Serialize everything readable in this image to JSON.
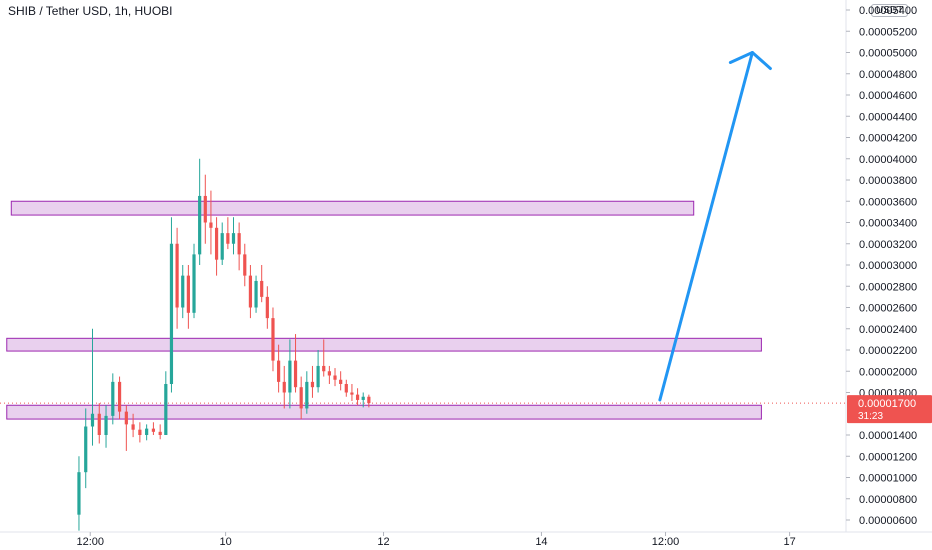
{
  "chart_data": {
    "type": "candlestick",
    "title": "SHIB / Tether USD, 1h, HUOBI",
    "currency": "USDT",
    "ylim": [
      5.1e-06,
      5.5e-06
    ],
    "y_ticks": [
      "0.00005400",
      "0.00005200",
      "0.00005000",
      "0.00004800",
      "0.00004600",
      "0.00004400",
      "0.00004200",
      "0.00004000",
      "0.00003800",
      "0.00003600",
      "0.00003400",
      "0.00003200",
      "0.00003000",
      "0.00002800",
      "0.00002600",
      "0.00002400",
      "0.00002200",
      "0.00002000",
      "0.00001800",
      "0.00001400",
      "0.00001200",
      "0.00001000",
      "0.00000800",
      "0.00000600"
    ],
    "x_ticks": [
      {
        "label": "12:00",
        "index": 1
      },
      {
        "label": "10",
        "index": 13
      },
      {
        "label": "12",
        "index": 27
      },
      {
        "label": "14",
        "index": 41
      },
      {
        "label": "12:00",
        "index": 52
      },
      {
        "label": "17",
        "index": 63
      }
    ],
    "x_index_range": [
      -7,
      68
    ],
    "last_price": {
      "price": "0.00001700",
      "countdown": "31:23",
      "value": 1.7e-05
    },
    "colors": {
      "up": "#26a69a",
      "down": "#ef5350",
      "zone": "#9c27b0",
      "arrow": "#2196f3",
      "price_line": "#ef5350"
    },
    "zones": [
      {
        "from_index": -6,
        "to_index": 54.5,
        "low": 3.47e-05,
        "high": 3.6e-05
      },
      {
        "from_index": -6.4,
        "to_index": 60.5,
        "low": 2.19e-05,
        "high": 2.31e-05
      },
      {
        "from_index": -6.4,
        "to_index": 60.5,
        "low": 1.55e-05,
        "high": 1.68e-05
      }
    ],
    "arrow": {
      "from": {
        "index": 51.5,
        "price": 1.73e-05
      },
      "to": {
        "index": 59.7,
        "price": 5e-05
      }
    },
    "candles": [
      {
        "i": 0.0,
        "o": 6.5e-06,
        "h": 1.2e-05,
        "l": 5e-06,
        "c": 1.05e-05
      },
      {
        "i": 0.6,
        "o": 1.05e-05,
        "h": 1.65e-05,
        "l": 9e-06,
        "c": 1.48e-05
      },
      {
        "i": 1.2,
        "o": 1.48e-05,
        "h": 2.4e-05,
        "l": 1.3e-05,
        "c": 1.6e-05
      },
      {
        "i": 1.8,
        "o": 1.6e-05,
        "h": 1.7e-05,
        "l": 1.32e-05,
        "c": 1.4e-05
      },
      {
        "i": 2.4,
        "o": 1.4e-05,
        "h": 1.68e-05,
        "l": 1.28e-05,
        "c": 1.58e-05
      },
      {
        "i": 3.0,
        "o": 1.58e-05,
        "h": 1.98e-05,
        "l": 1.5e-05,
        "c": 1.9e-05
      },
      {
        "i": 3.6,
        "o": 1.9e-05,
        "h": 1.95e-05,
        "l": 1.55e-05,
        "c": 1.62e-05
      },
      {
        "i": 4.2,
        "o": 1.62e-05,
        "h": 1.68e-05,
        "l": 1.25e-05,
        "c": 1.5e-05
      },
      {
        "i": 4.8,
        "o": 1.5e-05,
        "h": 1.6e-05,
        "l": 1.38e-05,
        "c": 1.45e-05
      },
      {
        "i": 5.4,
        "o": 1.45e-05,
        "h": 1.52e-05,
        "l": 1.33e-05,
        "c": 1.4e-05
      },
      {
        "i": 6.0,
        "o": 1.4e-05,
        "h": 1.5e-05,
        "l": 1.35e-05,
        "c": 1.46e-05
      },
      {
        "i": 6.6,
        "o": 1.46e-05,
        "h": 1.52e-05,
        "l": 1.4e-05,
        "c": 1.43e-05
      },
      {
        "i": 7.2,
        "o": 1.43e-05,
        "h": 1.5e-05,
        "l": 1.36e-05,
        "c": 1.4e-05
      },
      {
        "i": 7.7,
        "o": 1.4e-05,
        "h": 2e-05,
        "l": 1.4e-05,
        "c": 1.88e-05
      },
      {
        "i": 8.2,
        "o": 1.88e-05,
        "h": 3.45e-05,
        "l": 1.8e-05,
        "c": 3.2e-05
      },
      {
        "i": 8.7,
        "o": 3.2e-05,
        "h": 3.35e-05,
        "l": 2.4e-05,
        "c": 2.6e-05
      },
      {
        "i": 9.2,
        "o": 2.6e-05,
        "h": 3e-05,
        "l": 2.5e-05,
        "c": 2.9e-05
      },
      {
        "i": 9.7,
        "o": 2.9e-05,
        "h": 3e-05,
        "l": 2.4e-05,
        "c": 2.55e-05
      },
      {
        "i": 10.2,
        "o": 2.55e-05,
        "h": 3.2e-05,
        "l": 2.5e-05,
        "c": 3.1e-05
      },
      {
        "i": 10.7,
        "o": 3.1e-05,
        "h": 4e-05,
        "l": 3e-05,
        "c": 3.65e-05
      },
      {
        "i": 11.2,
        "o": 3.65e-05,
        "h": 3.85e-05,
        "l": 3.2e-05,
        "c": 3.4e-05
      },
      {
        "i": 11.7,
        "o": 3.4e-05,
        "h": 3.7e-05,
        "l": 3.1e-05,
        "c": 3.35e-05
      },
      {
        "i": 12.2,
        "o": 3.35e-05,
        "h": 3.45e-05,
        "l": 2.9e-05,
        "c": 3.05e-05
      },
      {
        "i": 12.7,
        "o": 3.05e-05,
        "h": 3.4e-05,
        "l": 3e-05,
        "c": 3.3e-05
      },
      {
        "i": 13.2,
        "o": 3.3e-05,
        "h": 3.45e-05,
        "l": 3.15e-05,
        "c": 3.2e-05
      },
      {
        "i": 13.7,
        "o": 3.2e-05,
        "h": 3.45e-05,
        "l": 3.1e-05,
        "c": 3.3e-05
      },
      {
        "i": 14.2,
        "o": 3.3e-05,
        "h": 3.4e-05,
        "l": 2.95e-05,
        "c": 3.1e-05
      },
      {
        "i": 14.7,
        "o": 3.1e-05,
        "h": 3.2e-05,
        "l": 2.8e-05,
        "c": 2.9e-05
      },
      {
        "i": 15.2,
        "o": 2.9e-05,
        "h": 3e-05,
        "l": 2.5e-05,
        "c": 2.6e-05
      },
      {
        "i": 15.7,
        "o": 2.6e-05,
        "h": 2.9e-05,
        "l": 2.55e-05,
        "c": 2.85e-05
      },
      {
        "i": 16.2,
        "o": 2.85e-05,
        "h": 3e-05,
        "l": 2.65e-05,
        "c": 2.7e-05
      },
      {
        "i": 16.7,
        "o": 2.7e-05,
        "h": 2.8e-05,
        "l": 2.4e-05,
        "c": 2.5e-05
      },
      {
        "i": 17.2,
        "o": 2.5e-05,
        "h": 2.6e-05,
        "l": 2e-05,
        "c": 2.1e-05
      },
      {
        "i": 17.7,
        "o": 2.1e-05,
        "h": 2.25e-05,
        "l": 1.8e-05,
        "c": 1.9e-05
      },
      {
        "i": 18.2,
        "o": 1.9e-05,
        "h": 2.05e-05,
        "l": 1.65e-05,
        "c": 1.8e-05
      },
      {
        "i": 18.7,
        "o": 1.8e-05,
        "h": 2.3e-05,
        "l": 1.65e-05,
        "c": 2.1e-05
      },
      {
        "i": 19.2,
        "o": 2.1e-05,
        "h": 2.35e-05,
        "l": 1.8e-05,
        "c": 1.85e-05
      },
      {
        "i": 19.7,
        "o": 1.85e-05,
        "h": 1.95e-05,
        "l": 1.55e-05,
        "c": 1.65e-05
      },
      {
        "i": 20.2,
        "o": 1.65e-05,
        "h": 2e-05,
        "l": 1.6e-05,
        "c": 1.9e-05
      },
      {
        "i": 20.7,
        "o": 1.9e-05,
        "h": 2.05e-05,
        "l": 1.75e-05,
        "c": 1.85e-05
      },
      {
        "i": 21.2,
        "o": 1.85e-05,
        "h": 2.2e-05,
        "l": 1.8e-05,
        "c": 2.05e-05
      },
      {
        "i": 21.7,
        "o": 2.05e-05,
        "h": 2.3e-05,
        "l": 1.95e-05,
        "c": 2e-05
      },
      {
        "i": 22.2,
        "o": 2e-05,
        "h": 2.05e-05,
        "l": 1.88e-05,
        "c": 1.96e-05
      },
      {
        "i": 22.7,
        "o": 1.96e-05,
        "h": 2.03e-05,
        "l": 1.86e-05,
        "c": 1.92e-05
      },
      {
        "i": 23.2,
        "o": 1.92e-05,
        "h": 2e-05,
        "l": 1.82e-05,
        "c": 1.88e-05
      },
      {
        "i": 23.7,
        "o": 1.88e-05,
        "h": 1.92e-05,
        "l": 1.76e-05,
        "c": 1.8e-05
      },
      {
        "i": 24.2,
        "o": 1.8e-05,
        "h": 1.88e-05,
        "l": 1.72e-05,
        "c": 1.78e-05
      },
      {
        "i": 24.7,
        "o": 1.78e-05,
        "h": 1.84e-05,
        "l": 1.68e-05,
        "c": 1.73e-05
      },
      {
        "i": 25.2,
        "o": 1.73e-05,
        "h": 1.8e-05,
        "l": 1.66e-05,
        "c": 1.76e-05
      },
      {
        "i": 25.7,
        "o": 1.76e-05,
        "h": 1.78e-05,
        "l": 1.66e-05,
        "c": 1.7e-05
      }
    ]
  }
}
